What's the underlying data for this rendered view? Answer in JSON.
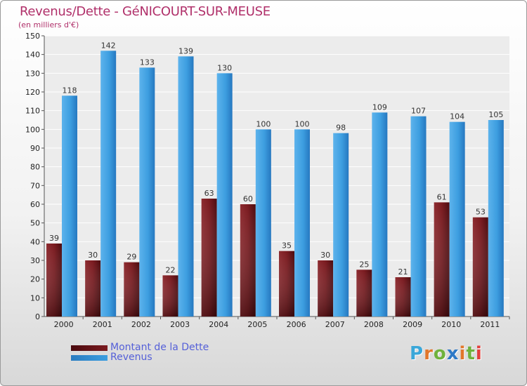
{
  "title": "Revenus/Dette - GéNICOURT-SUR-MEUSE",
  "unit_note": "(en milliers d'€)",
  "logo": {
    "text": "Proxiti",
    "letter_colors": [
      "#3aa7d9",
      "#e2772b",
      "#6fb23c",
      "#2d79c7",
      "#e2772b",
      "#6fb23c",
      "#e2403c"
    ]
  },
  "colors": {
    "dette": "#7a1a1f",
    "revenus": "#3d9ee0",
    "title": "#b0306a",
    "legend_text": "#5560d8"
  },
  "chart_data": {
    "type": "bar",
    "title": "Revenus/Dette - GéNICOURT-SUR-MEUSE",
    "ylabel": "",
    "xlabel": "",
    "ylim": [
      0,
      150
    ],
    "yticks": [
      0,
      10,
      20,
      30,
      40,
      50,
      60,
      70,
      80,
      90,
      100,
      110,
      120,
      130,
      140,
      150
    ],
    "grid": true,
    "legend_position": "bottom-left",
    "categories": [
      "2000",
      "2001",
      "2002",
      "2003",
      "2004",
      "2005",
      "2006",
      "2007",
      "2008",
      "2009",
      "2010",
      "2011"
    ],
    "series": [
      {
        "name": "Montant de la Dette",
        "values": [
          39,
          30,
          29,
          22,
          63,
          60,
          35,
          30,
          25,
          21,
          61,
          53
        ]
      },
      {
        "name": "Revenus",
        "values": [
          118,
          142,
          133,
          139,
          130,
          100,
          100,
          98,
          109,
          107,
          104,
          105
        ]
      }
    ]
  }
}
